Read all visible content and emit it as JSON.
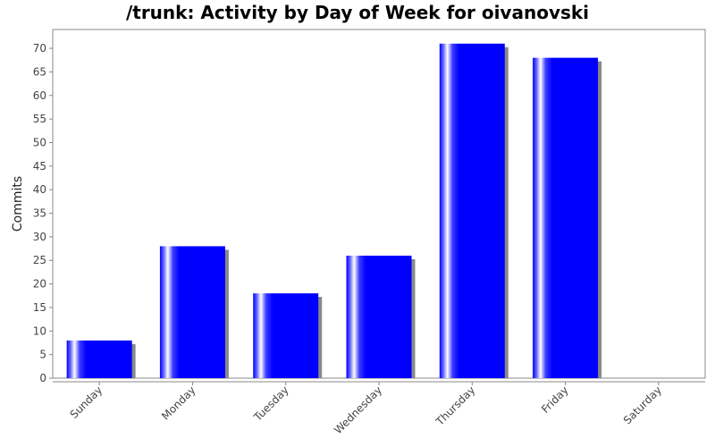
{
  "chart_data": {
    "type": "bar",
    "title": "/trunk: Activity by Day of Week for oivanovski",
    "xlabel": "",
    "ylabel": "Commits",
    "categories": [
      "Sunday",
      "Monday",
      "Tuesday",
      "Wednesday",
      "Thursday",
      "Friday",
      "Saturday"
    ],
    "values": [
      8,
      28,
      18,
      26,
      71,
      68,
      0
    ],
    "ylim": [
      0,
      74
    ],
    "yticks": [
      0,
      5,
      10,
      15,
      20,
      25,
      30,
      35,
      40,
      45,
      50,
      55,
      60,
      65,
      70
    ],
    "grid": false,
    "legend": "none",
    "colors": {
      "bar": "#0000ff",
      "bar_highlight": "#ffffff",
      "shadow": "#888888",
      "plot_border": "#888888",
      "axis": "#888888"
    }
  }
}
